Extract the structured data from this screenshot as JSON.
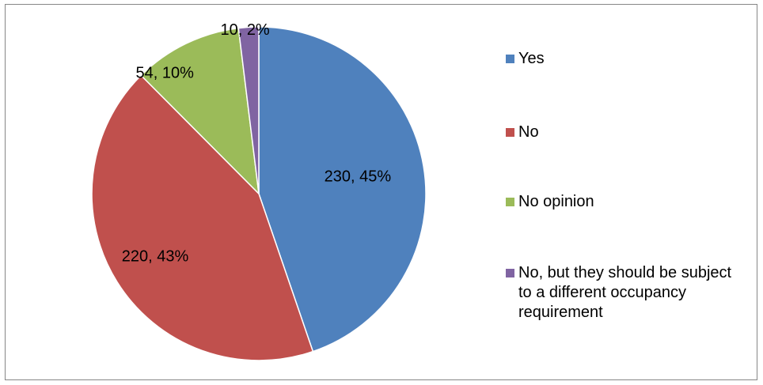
{
  "chart_data": {
    "type": "pie",
    "title": "",
    "slices": [
      {
        "name": "Yes",
        "value": 230,
        "percent": "45%",
        "label": "230, 45%",
        "color": "#4F81BD"
      },
      {
        "name": "No",
        "value": 220,
        "percent": "43%",
        "label": "220, 43%",
        "color": "#C0504D"
      },
      {
        "name": "No opinion",
        "value": 54,
        "percent": "10%",
        "label": "54, 10%",
        "color": "#9BBB59"
      },
      {
        "name": "No, but they should be subject to a different occupancy requirement",
        "value": 10,
        "percent": "2%",
        "label": "10, 2%",
        "color": "#8064A2"
      }
    ],
    "legend_position": "right",
    "start_angle": "top",
    "direction": "clockwise"
  }
}
